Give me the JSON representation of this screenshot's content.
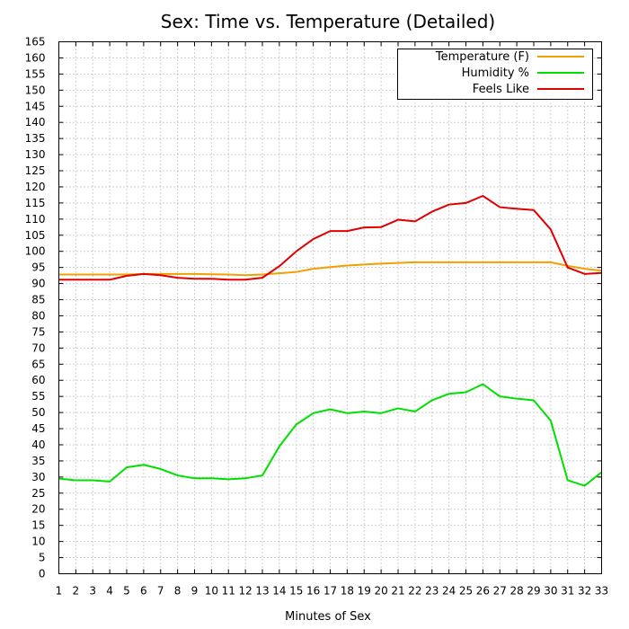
{
  "chart_data": {
    "type": "line",
    "title": "Sex: Time vs. Temperature (Detailed)",
    "xlabel": "Minutes of Sex",
    "ylabel": "",
    "xlim": [
      1,
      33
    ],
    "ylim": [
      0,
      165
    ],
    "x_ticks": [
      1,
      2,
      3,
      4,
      5,
      6,
      7,
      8,
      9,
      10,
      11,
      12,
      13,
      14,
      15,
      16,
      17,
      18,
      19,
      20,
      21,
      22,
      23,
      24,
      25,
      26,
      27,
      28,
      29,
      30,
      31,
      32,
      33
    ],
    "y_ticks": [
      0,
      5,
      10,
      15,
      20,
      25,
      30,
      35,
      40,
      45,
      50,
      55,
      60,
      65,
      70,
      75,
      80,
      85,
      90,
      95,
      100,
      105,
      110,
      115,
      120,
      125,
      130,
      135,
      140,
      145,
      150,
      155,
      160,
      165
    ],
    "grid": true,
    "legend_position": "top-right",
    "x": [
      1,
      2,
      3,
      4,
      5,
      6,
      7,
      8,
      9,
      10,
      11,
      12,
      13,
      14,
      15,
      16,
      17,
      18,
      19,
      20,
      21,
      22,
      23,
      24,
      25,
      26,
      27,
      28,
      29,
      30,
      31,
      32,
      33
    ],
    "series": [
      {
        "name": "Temperature (F)",
        "color": "#f0a000",
        "values": [
          92.8,
          92.8,
          92.8,
          92.8,
          92.8,
          93.0,
          93.0,
          93.0,
          93.0,
          92.9,
          92.8,
          92.6,
          92.8,
          93.2,
          93.6,
          94.6,
          95.1,
          95.6,
          95.9,
          96.2,
          96.4,
          96.6,
          96.6,
          96.6,
          96.6,
          96.6,
          96.6,
          96.6,
          96.6,
          96.6,
          95.5,
          94.6,
          94.0
        ]
      },
      {
        "name": "Humidity %",
        "color": "#00e000",
        "values": [
          29.5,
          29.0,
          29.0,
          28.6,
          33.0,
          33.8,
          32.5,
          30.5,
          29.6,
          29.6,
          29.3,
          29.6,
          30.5,
          39.5,
          46.3,
          49.8,
          51.0,
          49.8,
          50.3,
          49.8,
          51.3,
          50.3,
          53.8,
          55.8,
          56.3,
          58.8,
          55.0,
          54.3,
          53.8,
          47.5,
          29.0,
          27.3,
          31.5
        ]
      },
      {
        "name": "Feels Like",
        "color": "#e00000",
        "values": [
          91.2,
          91.2,
          91.2,
          91.2,
          92.4,
          93.0,
          92.6,
          91.8,
          91.5,
          91.5,
          91.2,
          91.2,
          91.8,
          95.4,
          100.0,
          103.8,
          106.3,
          106.3,
          107.4,
          107.5,
          109.8,
          109.3,
          112.3,
          114.5,
          115.0,
          117.2,
          113.7,
          113.2,
          112.8,
          106.8,
          95.0,
          93.0,
          93.3
        ]
      }
    ]
  }
}
